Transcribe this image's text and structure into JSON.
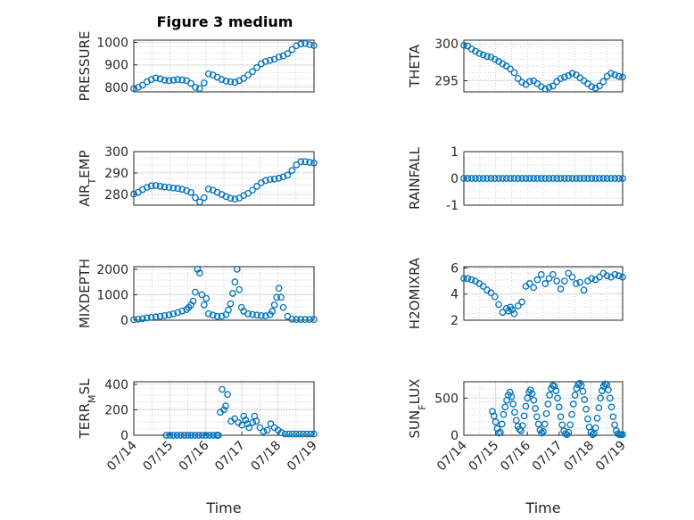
{
  "figure": {
    "title": "Figure 3 medium"
  },
  "colors": {
    "marker": "#0072BD",
    "axis": "#262626",
    "grid": "#b0b0b0"
  },
  "chart_data": [
    {
      "type": "scatter",
      "ylabel": "PRESSURE",
      "ylabel_sub": "",
      "xlabel": "",
      "title": "Figure 3 medium",
      "ylim": [
        780,
        1010
      ],
      "yticks": [
        "800",
        "900",
        "1000"
      ],
      "ytick_values": [
        800,
        900,
        1000
      ],
      "xlim": [
        14.9,
        19.0
      ],
      "xticks": [],
      "grid": true,
      "x": [
        14.9,
        15.0,
        15.1,
        15.2,
        15.3,
        15.4,
        15.5,
        15.6,
        15.7,
        15.8,
        15.9,
        16.0,
        16.1,
        16.2,
        16.3,
        16.4,
        16.5,
        16.6,
        16.7,
        16.8,
        16.9,
        17.0,
        17.1,
        17.2,
        17.3,
        17.4,
        17.5,
        17.6,
        17.7,
        17.8,
        17.9,
        18.0,
        18.1,
        18.2,
        18.3,
        18.4,
        18.5,
        18.6,
        18.7,
        18.8,
        18.9,
        19.0
      ],
      "y": [
        795,
        800,
        810,
        825,
        835,
        842,
        838,
        832,
        830,
        832,
        835,
        833,
        830,
        818,
        800,
        795,
        820,
        860,
        855,
        845,
        835,
        828,
        825,
        822,
        830,
        840,
        855,
        870,
        888,
        905,
        915,
        920,
        925,
        935,
        940,
        950,
        968,
        985,
        993,
        995,
        990,
        986
      ]
    },
    {
      "type": "scatter",
      "ylabel": "THETA",
      "ylabel_sub": "",
      "xlabel": "",
      "title": "",
      "ylim": [
        293.5,
        300.5
      ],
      "yticks": [
        "295",
        "300"
      ],
      "ytick_values": [
        295,
        300
      ],
      "xlim": [
        14.9,
        19.0
      ],
      "xticks": [],
      "grid": true,
      "x": [
        14.9,
        15.0,
        15.1,
        15.2,
        15.3,
        15.4,
        15.5,
        15.6,
        15.7,
        15.8,
        15.9,
        16.0,
        16.1,
        16.2,
        16.3,
        16.4,
        16.5,
        16.6,
        16.7,
        16.8,
        16.9,
        17.0,
        17.1,
        17.2,
        17.3,
        17.4,
        17.5,
        17.6,
        17.7,
        17.8,
        17.9,
        18.0,
        18.1,
        18.2,
        18.3,
        18.4,
        18.5,
        18.6,
        18.7,
        18.8,
        18.9,
        19.0
      ],
      "y": [
        299.8,
        299.7,
        299.3,
        299.0,
        298.7,
        298.5,
        298.3,
        298.2,
        297.9,
        297.6,
        297.3,
        297.0,
        296.6,
        296.1,
        295.3,
        294.8,
        294.5,
        294.9,
        295.0,
        294.6,
        294.2,
        293.9,
        294.1,
        294.3,
        294.9,
        295.3,
        295.5,
        295.7,
        296.0,
        295.8,
        295.4,
        295.0,
        294.6,
        294.2,
        294.0,
        294.3,
        294.9,
        295.6,
        296.0,
        295.8,
        295.6,
        295.5
      ]
    },
    {
      "type": "scatter",
      "ylabel": "AIR",
      "ylabel_sub": "T",
      "ylabel_after": "EMP",
      "xlabel": "",
      "title": "",
      "ylim": [
        275,
        300
      ],
      "yticks": [
        "280",
        "290",
        "300"
      ],
      "ytick_values": [
        280,
        290,
        300
      ],
      "xlim": [
        14.9,
        19.0
      ],
      "xticks": [],
      "grid": true,
      "x": [
        14.9,
        15.0,
        15.1,
        15.2,
        15.3,
        15.4,
        15.5,
        15.6,
        15.7,
        15.8,
        15.9,
        16.0,
        16.1,
        16.2,
        16.3,
        16.4,
        16.5,
        16.6,
        16.7,
        16.8,
        16.9,
        17.0,
        17.1,
        17.2,
        17.3,
        17.4,
        17.5,
        17.6,
        17.7,
        17.8,
        17.9,
        18.0,
        18.1,
        18.2,
        18.3,
        18.4,
        18.5,
        18.6,
        18.7,
        18.8,
        18.9,
        19.0
      ],
      "y": [
        280.2,
        281.0,
        282.3,
        283.3,
        284.0,
        284.2,
        283.8,
        283.5,
        283.3,
        283.0,
        282.8,
        282.4,
        281.8,
        280.9,
        278.5,
        276.5,
        278.5,
        282.5,
        282.0,
        281.0,
        280.0,
        279.0,
        278.2,
        277.8,
        278.3,
        279.5,
        280.5,
        282.0,
        283.8,
        285.5,
        286.5,
        287.0,
        287.2,
        287.6,
        288.2,
        289.0,
        291.2,
        293.8,
        295.3,
        295.3,
        295.0,
        294.7
      ]
    },
    {
      "type": "scatter",
      "ylabel": "RAINFALL",
      "ylabel_sub": "",
      "xlabel": "",
      "title": "",
      "ylim": [
        -1,
        1
      ],
      "yticks": [
        "-1",
        "0",
        "1"
      ],
      "ytick_values": [
        -1,
        0,
        1
      ],
      "xlim": [
        14.9,
        19.0
      ],
      "xticks": [],
      "grid": true,
      "x": [
        14.9,
        15.0,
        15.1,
        15.2,
        15.3,
        15.4,
        15.5,
        15.6,
        15.7,
        15.8,
        15.9,
        16.0,
        16.1,
        16.2,
        16.3,
        16.4,
        16.5,
        16.6,
        16.7,
        16.8,
        16.9,
        17.0,
        17.1,
        17.2,
        17.3,
        17.4,
        17.5,
        17.6,
        17.7,
        17.8,
        17.9,
        18.0,
        18.1,
        18.2,
        18.3,
        18.4,
        18.5,
        18.6,
        18.7,
        18.8,
        18.9,
        19.0
      ],
      "y": [
        0,
        0,
        0,
        0,
        0,
        0,
        0,
        0,
        0,
        0,
        0,
        0,
        0,
        0,
        0,
        0,
        0,
        0,
        0,
        0,
        0,
        0,
        0,
        0,
        0,
        0,
        0,
        0,
        0,
        0,
        0,
        0,
        0,
        0,
        0,
        0,
        0,
        0,
        0,
        0,
        0,
        0
      ]
    },
    {
      "type": "scatter",
      "ylabel": "MIXDEPTH",
      "ylabel_sub": "",
      "xlabel": "",
      "title": "",
      "ylim": [
        0,
        2100
      ],
      "yticks": [
        "0",
        "1000",
        "2000"
      ],
      "ytick_values": [
        0,
        1000,
        2000
      ],
      "xlim": [
        14.9,
        19.0
      ],
      "xticks": [],
      "grid": true,
      "x": [
        14.9,
        15.0,
        15.1,
        15.2,
        15.3,
        15.4,
        15.5,
        15.6,
        15.7,
        15.8,
        15.9,
        16.0,
        16.1,
        16.15,
        16.2,
        16.25,
        16.3,
        16.35,
        16.4,
        16.45,
        16.5,
        16.55,
        16.6,
        16.7,
        16.8,
        16.9,
        17.0,
        17.05,
        17.1,
        17.15,
        17.2,
        17.25,
        17.3,
        17.35,
        17.4,
        17.5,
        17.6,
        17.7,
        17.8,
        17.9,
        18.0,
        18.05,
        18.1,
        18.15,
        18.2,
        18.25,
        18.3,
        18.4,
        18.5,
        18.6,
        18.7,
        18.8,
        18.9,
        19.0
      ],
      "y": [
        20,
        40,
        60,
        90,
        110,
        130,
        150,
        180,
        210,
        250,
        300,
        360,
        420,
        500,
        600,
        750,
        1100,
        2000,
        1850,
        1000,
        600,
        850,
        250,
        200,
        150,
        160,
        220,
        400,
        650,
        1050,
        1500,
        2000,
        1200,
        500,
        350,
        250,
        220,
        200,
        180,
        170,
        220,
        350,
        600,
        900,
        1250,
        900,
        500,
        150,
        40,
        30,
        30,
        30,
        30,
        30
      ]
    },
    {
      "type": "scatter",
      "ylabel": "H2OMIXRA",
      "ylabel_sub": "",
      "xlabel": "",
      "title": "",
      "ylim": [
        2,
        6.1
      ],
      "yticks": [
        "2",
        "4",
        "6"
      ],
      "ytick_values": [
        2,
        4,
        6
      ],
      "xlim": [
        14.9,
        19.0
      ],
      "xticks": [],
      "grid": true,
      "x": [
        14.9,
        15.0,
        15.1,
        15.2,
        15.3,
        15.4,
        15.5,
        15.6,
        15.7,
        15.8,
        15.9,
        16.0,
        16.05,
        16.1,
        16.15,
        16.2,
        16.3,
        16.4,
        16.5,
        16.6,
        16.7,
        16.8,
        16.9,
        17.0,
        17.1,
        17.2,
        17.3,
        17.4,
        17.5,
        17.6,
        17.7,
        17.8,
        17.9,
        18.0,
        18.1,
        18.2,
        18.3,
        18.4,
        18.5,
        18.6,
        18.7,
        18.8,
        18.9,
        19.0
      ],
      "y": [
        5.2,
        5.2,
        5.1,
        5.0,
        4.8,
        4.6,
        4.3,
        4.1,
        3.8,
        3.2,
        2.6,
        2.9,
        2.7,
        3.0,
        2.8,
        2.5,
        3.1,
        3.4,
        4.6,
        4.8,
        4.5,
        5.1,
        5.5,
        4.8,
        5.2,
        5.5,
        5.0,
        4.4,
        5.0,
        5.6,
        5.3,
        4.8,
        4.9,
        4.3,
        5.0,
        5.2,
        5.1,
        5.3,
        5.6,
        5.4,
        5.3,
        5.5,
        5.4,
        5.3
      ]
    },
    {
      "type": "scatter",
      "ylabel": "TERR",
      "ylabel_sub": "M",
      "ylabel_after": "SL",
      "xlabel": "Time",
      "title": "",
      "ylim": [
        0,
        420
      ],
      "yticks": [
        "0",
        "200",
        "400"
      ],
      "ytick_values": [
        0,
        200,
        400
      ],
      "xlim": [
        14.0,
        19.0
      ],
      "xticks": [
        "07/14",
        "07/15",
        "07/16",
        "07/17",
        "07/18",
        "07/19"
      ],
      "xtick_values": [
        14,
        15,
        16,
        17,
        18,
        19
      ],
      "grid": true,
      "x": [
        14.9,
        15.0,
        15.1,
        15.2,
        15.3,
        15.4,
        15.5,
        15.6,
        15.7,
        15.8,
        15.9,
        16.0,
        16.1,
        16.2,
        16.3,
        16.35,
        16.4,
        16.45,
        16.5,
        16.55,
        16.6,
        16.7,
        16.8,
        16.9,
        17.0,
        17.05,
        17.1,
        17.15,
        17.2,
        17.3,
        17.35,
        17.4,
        17.5,
        17.6,
        17.7,
        17.8,
        17.9,
        18.0,
        18.1,
        18.2,
        18.3,
        18.4,
        18.5,
        18.6,
        18.7,
        18.8,
        18.9,
        19.0
      ],
      "y": [
        0,
        0,
        0,
        0,
        0,
        0,
        0,
        0,
        0,
        0,
        0,
        0,
        0,
        0,
        0,
        0,
        180,
        360,
        200,
        230,
        320,
        110,
        130,
        100,
        80,
        150,
        120,
        90,
        60,
        100,
        150,
        110,
        60,
        30,
        40,
        90,
        60,
        40,
        20,
        10,
        10,
        10,
        10,
        10,
        10,
        10,
        10,
        10
      ]
    },
    {
      "type": "scatter",
      "ylabel": "SUN",
      "ylabel_sub": "F",
      "ylabel_after": "LUX",
      "xlabel": "Time",
      "title": "",
      "ylim": [
        0,
        720
      ],
      "yticks": [
        "0",
        "500"
      ],
      "ytick_values": [
        0,
        500
      ],
      "xlim": [
        14.0,
        19.0
      ],
      "xticks": [
        "07/14",
        "07/15",
        "07/16",
        "07/17",
        "07/18",
        "07/19"
      ],
      "xtick_values": [
        14,
        15,
        16,
        17,
        18,
        19
      ],
      "grid": true,
      "x": [
        14.9,
        14.95,
        15.0,
        15.05,
        15.1,
        15.15,
        15.2,
        15.25,
        15.3,
        15.35,
        15.4,
        15.45,
        15.5,
        15.55,
        15.6,
        15.65,
        15.7,
        15.75,
        15.8,
        15.85,
        15.9,
        15.95,
        16.0,
        16.05,
        16.1,
        16.15,
        16.2,
        16.25,
        16.3,
        16.35,
        16.4,
        16.45,
        16.5,
        16.55,
        16.6,
        16.65,
        16.7,
        16.75,
        16.8,
        16.85,
        16.9,
        16.95,
        17.0,
        17.05,
        17.1,
        17.15,
        17.2,
        17.25,
        17.3,
        17.35,
        17.4,
        17.45,
        17.5,
        17.55,
        17.6,
        17.65,
        17.7,
        17.75,
        17.8,
        17.85,
        17.9,
        17.95,
        18.0,
        18.05,
        18.1,
        18.15,
        18.2,
        18.25,
        18.3,
        18.35,
        18.4,
        18.45,
        18.5,
        18.55,
        18.6,
        18.65,
        18.7,
        18.75,
        18.8,
        18.85,
        18.9,
        18.95,
        19.0
      ],
      "y": [
        320,
        260,
        180,
        90,
        30,
        40,
        150,
        280,
        380,
        470,
        540,
        580,
        520,
        420,
        310,
        200,
        120,
        80,
        60,
        130,
        260,
        390,
        500,
        580,
        610,
        560,
        470,
        360,
        250,
        150,
        70,
        30,
        50,
        150,
        290,
        420,
        540,
        630,
        670,
        660,
        600,
        500,
        380,
        250,
        140,
        60,
        20,
        10,
        40,
        140,
        280,
        420,
        540,
        630,
        680,
        700,
        670,
        590,
        480,
        350,
        220,
        110,
        40,
        10,
        20,
        100,
        230,
        370,
        500,
        600,
        660,
        690,
        680,
        610,
        500,
        380,
        250,
        140,
        60,
        20,
        10,
        10,
        10
      ]
    }
  ]
}
